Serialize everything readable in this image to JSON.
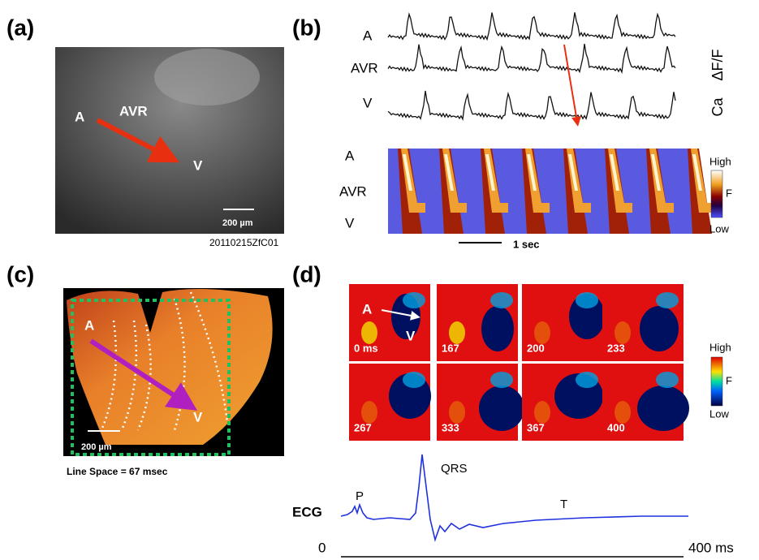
{
  "panels": {
    "a": {
      "label": "(a)",
      "markers": [
        "A",
        "AVR",
        "V"
      ],
      "scale_bar": "200 µm",
      "image_id": "20110215ZfC01"
    },
    "b": {
      "label": "(b)",
      "trace_labels": [
        "A",
        "AVR",
        "V"
      ],
      "signal": "Ca",
      "unit": "ΔF/F",
      "heatmap_labels": [
        "A",
        "AVR",
        "V"
      ],
      "colorbar": {
        "high": "High",
        "mid": "F",
        "low": "Low"
      },
      "time_bar": "1 sec"
    },
    "c": {
      "label": "(c)",
      "markers": [
        "A",
        "V"
      ],
      "scale_bar": "200 µm",
      "caption": "Line Space = 67 msec"
    },
    "d": {
      "label": "(d)",
      "markers": [
        "A",
        "V"
      ],
      "frames": [
        "0 ms",
        "167",
        "200",
        "233",
        "267",
        "333",
        "367",
        "400"
      ],
      "colorbar": {
        "high": "High",
        "mid": "F",
        "low": "Low"
      },
      "ecg": {
        "label": "ECG",
        "waves": [
          "P",
          "QRS",
          "T"
        ],
        "axis_start": "0",
        "axis_end": "400 ms"
      }
    }
  }
}
